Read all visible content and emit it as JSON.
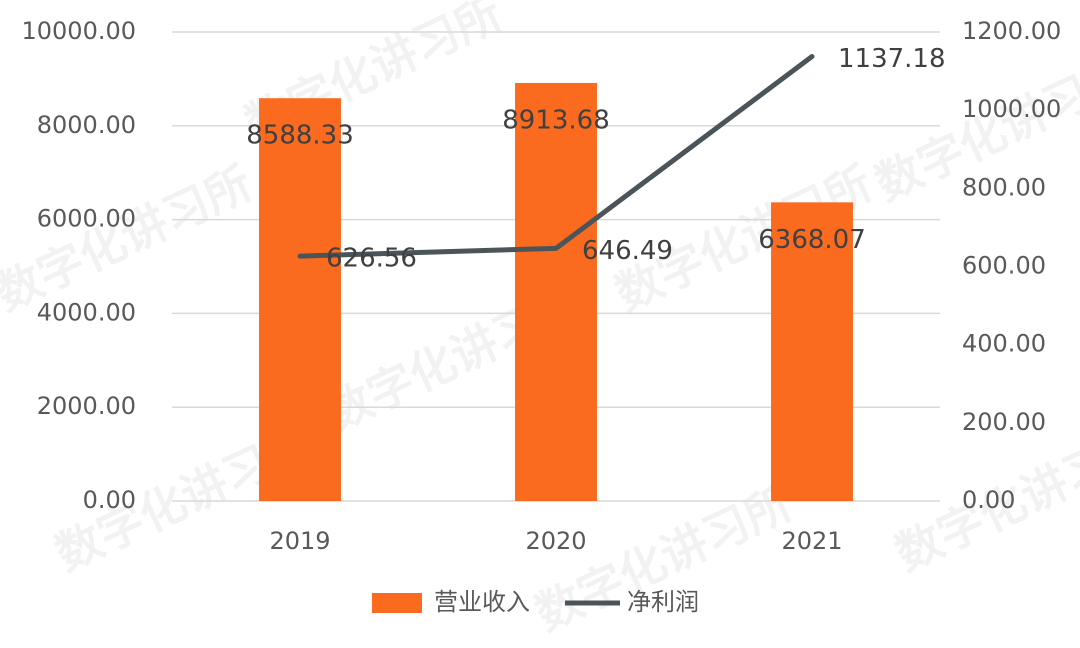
{
  "chart_data": {
    "type": "bar",
    "watermark": "数字化讲习所",
    "categories": [
      "2019",
      "2020",
      "2021"
    ],
    "series": [
      {
        "name": "营业收入",
        "type": "bar",
        "color": "#fa6a1f",
        "values": [
          8588.33,
          8913.68,
          6368.07
        ]
      },
      {
        "name": "净利润",
        "type": "line",
        "axis": "y2",
        "color": "#4b5559",
        "values": [
          626.56,
          646.49,
          1137.18
        ]
      }
    ],
    "ylim": [
      0,
      10000
    ],
    "yticks": [
      {
        "value": 0,
        "label": "0.00"
      },
      {
        "value": 2000,
        "label": "2000.00"
      },
      {
        "value": 4000,
        "label": "4000.00"
      },
      {
        "value": 6000,
        "label": "6000.00"
      },
      {
        "value": 8000,
        "label": "8000.00"
      },
      {
        "value": 10000,
        "label": "10000.00"
      }
    ],
    "y2lim": [
      0,
      1200
    ],
    "y2ticks": [
      {
        "value": 0,
        "label": "0.00"
      },
      {
        "value": 200,
        "label": "200.00"
      },
      {
        "value": 400,
        "label": "400.00"
      },
      {
        "value": 600,
        "label": "600.00"
      },
      {
        "value": 800,
        "label": "800.00"
      },
      {
        "value": 1000,
        "label": "1000.00"
      },
      {
        "value": 1200,
        "label": "1200.00"
      }
    ],
    "grid": true,
    "legend": "bottom"
  }
}
